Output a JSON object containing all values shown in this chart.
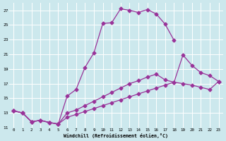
{
  "xlabel": "Windchill (Refroidissement éolien,°C)",
  "background_color": "#cce8ed",
  "grid_color": "#ffffff",
  "line_color": "#993399",
  "xlim": [
    -0.5,
    23.5
  ],
  "ylim": [
    11,
    28
  ],
  "xticks": [
    0,
    1,
    2,
    3,
    4,
    5,
    6,
    7,
    8,
    9,
    10,
    11,
    12,
    13,
    14,
    15,
    16,
    17,
    18,
    19,
    20,
    21,
    22,
    23
  ],
  "yticks": [
    11,
    13,
    15,
    17,
    19,
    21,
    23,
    25,
    27
  ],
  "line1_x": [
    0,
    1,
    2,
    3,
    4,
    5,
    6,
    7,
    8,
    9,
    10,
    11,
    12,
    13,
    14,
    15,
    16,
    17,
    18
  ],
  "line1_y": [
    13.3,
    13.0,
    11.8,
    12.0,
    11.7,
    11.5,
    15.3,
    16.2,
    19.2,
    21.2,
    25.2,
    25.3,
    27.2,
    27.0,
    26.7,
    27.1,
    26.5,
    25.1,
    22.9
  ],
  "line2_x": [
    0,
    1,
    2,
    3,
    4,
    5,
    6,
    7,
    8,
    9,
    10,
    11,
    12,
    13,
    14,
    15,
    16,
    17,
    18,
    19,
    20,
    21,
    22,
    23
  ],
  "line2_y": [
    13.3,
    13.0,
    11.8,
    12.0,
    11.7,
    11.5,
    13.0,
    13.4,
    14.0,
    14.6,
    15.2,
    15.8,
    16.4,
    17.0,
    17.4,
    17.9,
    18.3,
    17.5,
    17.2,
    17.0,
    16.8,
    16.5,
    16.2,
    17.3
  ],
  "line3_x": [
    0,
    1,
    2,
    3,
    4,
    5,
    6,
    7,
    8,
    9,
    10,
    11,
    12,
    13,
    14,
    15,
    16,
    17,
    18,
    19,
    20,
    21,
    22,
    23
  ],
  "line3_y": [
    13.3,
    13.0,
    11.8,
    12.0,
    11.7,
    11.5,
    12.4,
    12.8,
    13.2,
    13.6,
    14.0,
    14.4,
    14.8,
    15.2,
    15.6,
    16.0,
    16.4,
    16.8,
    17.2,
    20.9,
    19.5,
    18.5,
    18.1,
    17.3
  ],
  "marker": "D",
  "markersize": 2.5,
  "linewidth": 0.9
}
